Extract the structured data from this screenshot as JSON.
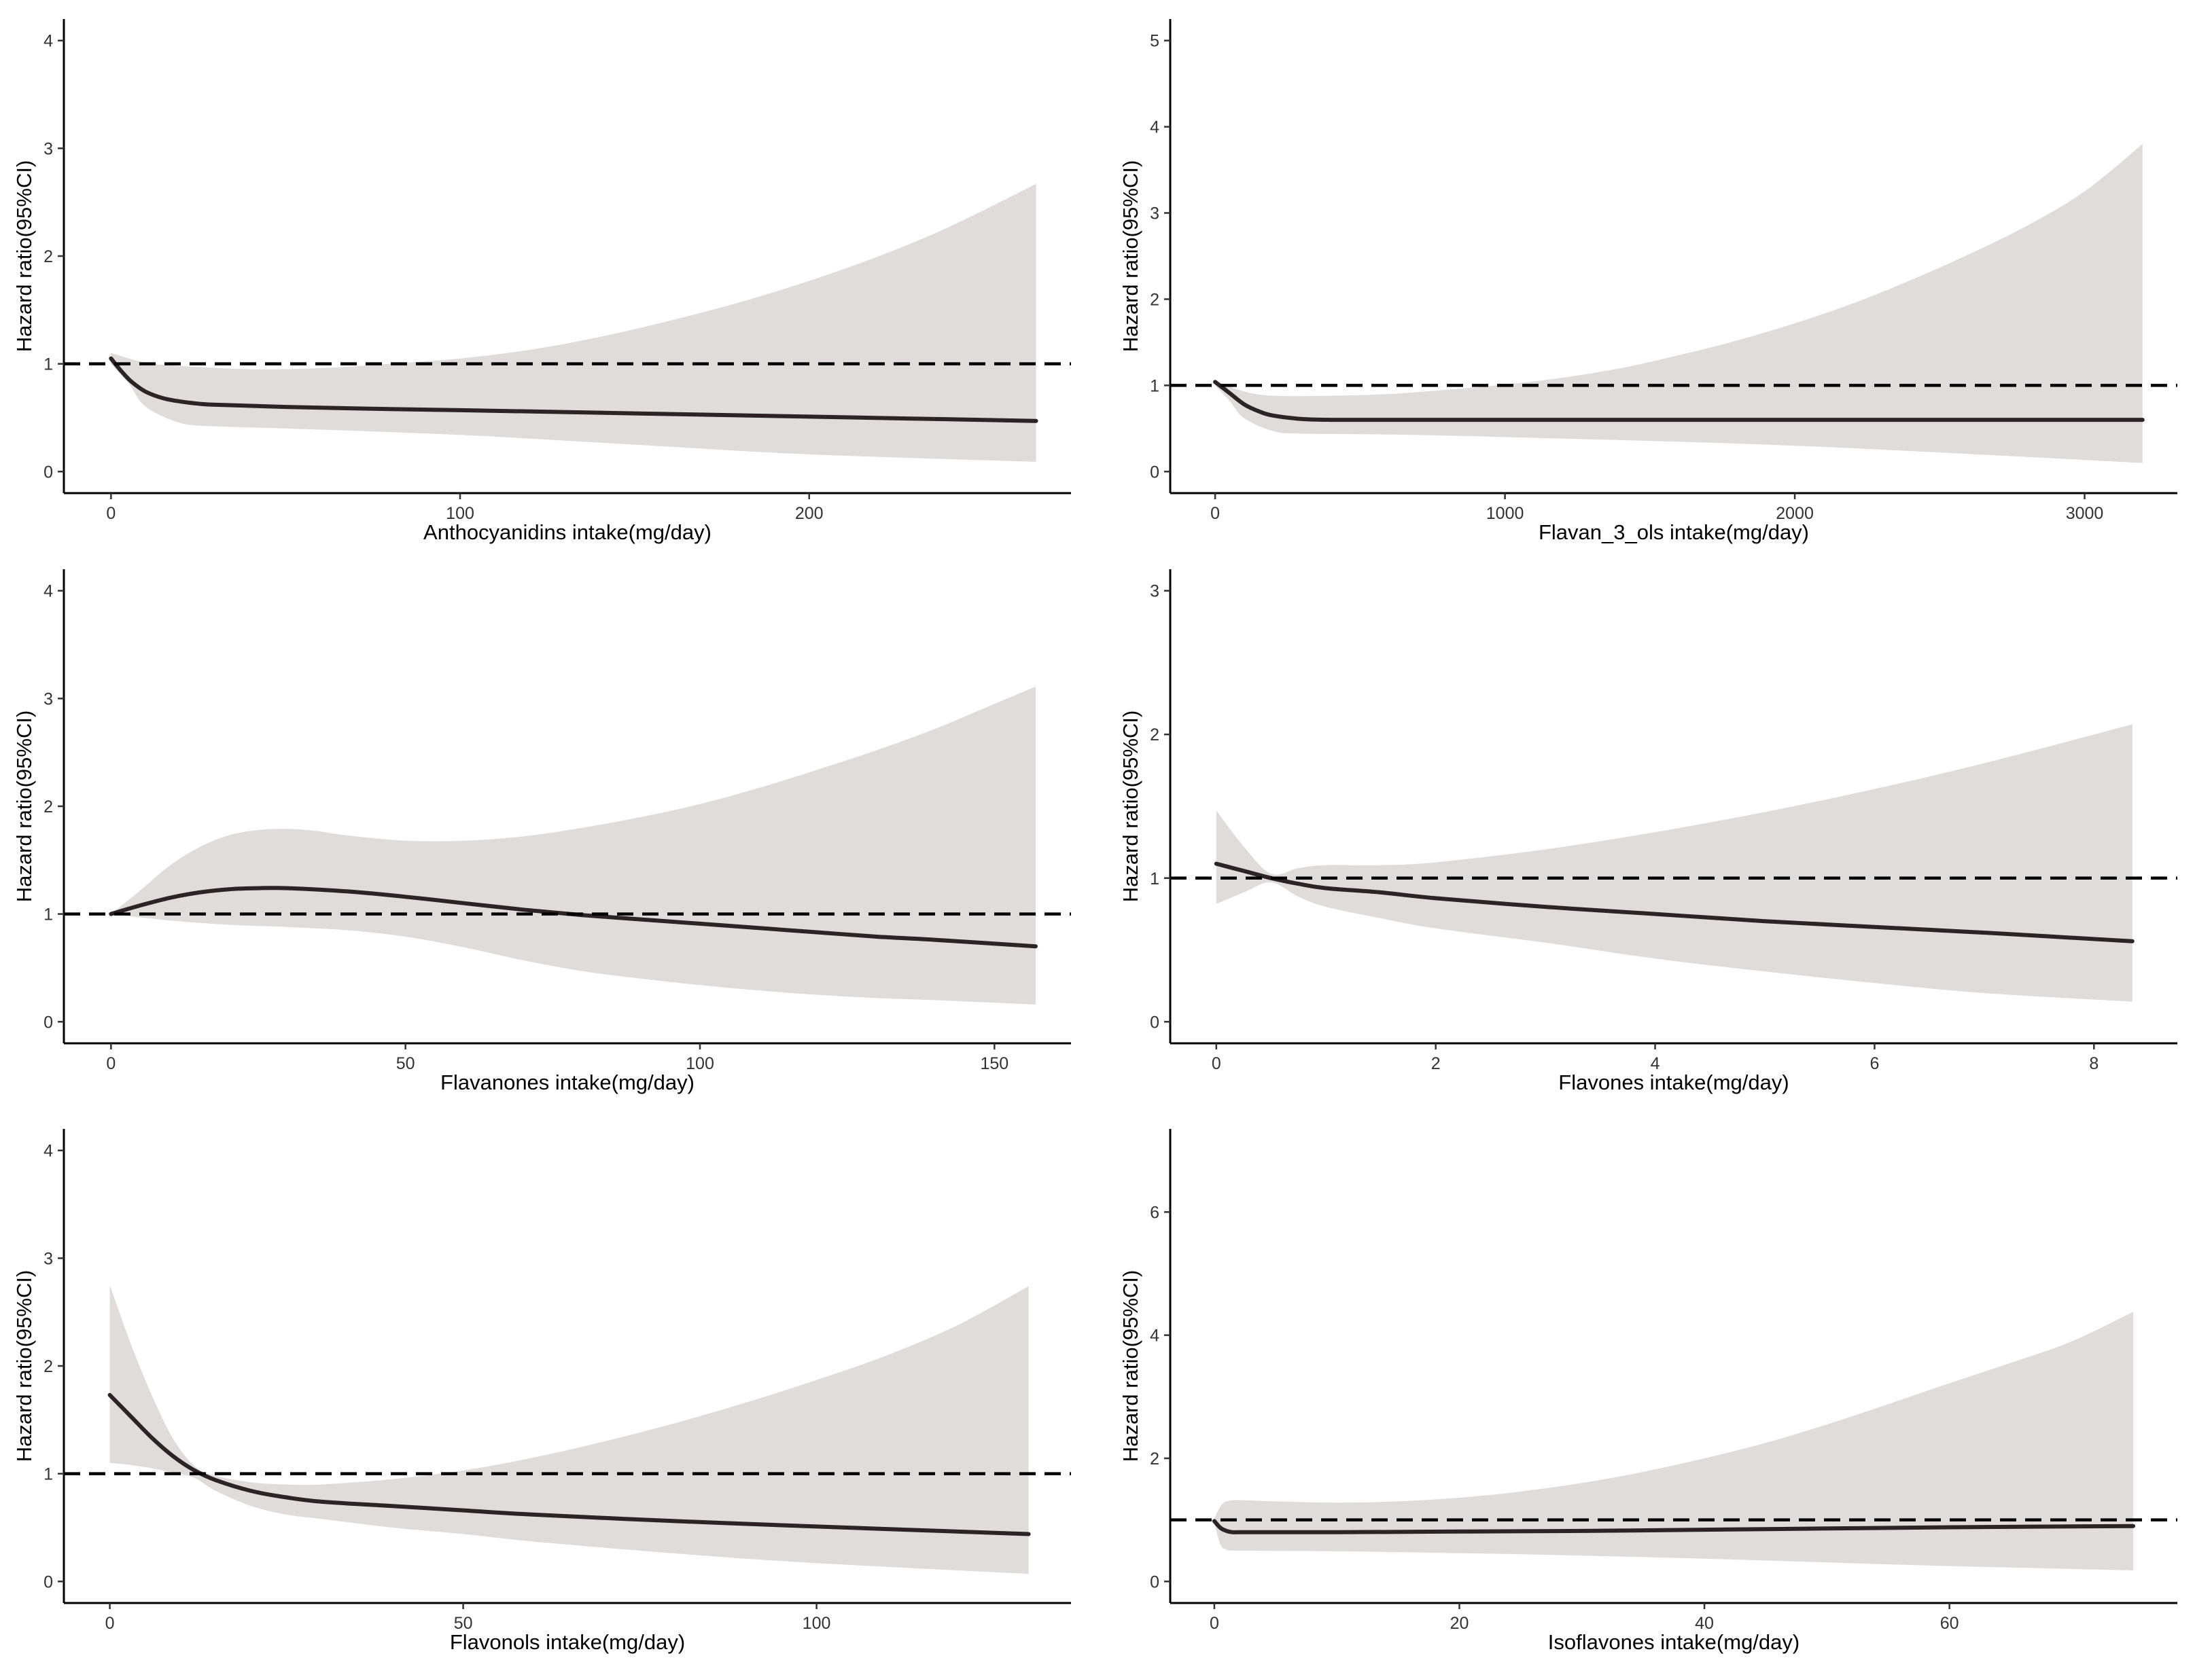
{
  "chart_data": [
    {
      "type": "line",
      "xlabel": "Anthocyanidins intake(mg/day)",
      "ylabel": "Hazard ratio(95%CI)",
      "xlim": [
        -13.5,
        275
      ],
      "ylim": [
        -0.2,
        4.2
      ],
      "xticks": [
        0,
        100,
        200
      ],
      "yticks": [
        0,
        1,
        2,
        3,
        4
      ],
      "reference_line": 1,
      "series": [
        {
          "name": "Hazard ratio",
          "x": [
            0,
            3,
            6,
            10,
            15,
            20,
            25,
            30,
            50,
            80,
            100,
            150,
            200,
            265
          ],
          "values": [
            1.05,
            0.93,
            0.83,
            0.74,
            0.68,
            0.65,
            0.63,
            0.62,
            0.6,
            0.58,
            0.57,
            0.54,
            0.51,
            0.47
          ]
        },
        {
          "name": "95% CI upper",
          "x": [
            0,
            10,
            20,
            40,
            60,
            80,
            100,
            120,
            140,
            160,
            180,
            200,
            220,
            240,
            265
          ],
          "values": [
            1.1,
            1.01,
            0.98,
            0.95,
            0.96,
            1.0,
            1.05,
            1.13,
            1.25,
            1.4,
            1.57,
            1.77,
            2.0,
            2.27,
            2.67
          ]
        },
        {
          "name": "95% CI lower",
          "x": [
            0,
            5,
            10,
            20,
            30,
            50,
            100,
            150,
            200,
            265
          ],
          "values": [
            1.0,
            0.82,
            0.6,
            0.45,
            0.42,
            0.4,
            0.34,
            0.25,
            0.16,
            0.09
          ]
        }
      ]
    },
    {
      "type": "line",
      "xlabel": "Flavan_3_ols intake(mg/day)",
      "ylabel": "Hazard ratio(95%CI)",
      "xlim": [
        -155,
        3320
      ],
      "ylim": [
        -0.25,
        5.25
      ],
      "xticks": [
        0,
        1000,
        2000,
        3000
      ],
      "yticks": [
        0,
        1,
        2,
        3,
        4,
        5
      ],
      "reference_line": 1,
      "series": [
        {
          "name": "Hazard ratio",
          "x": [
            0,
            50,
            100,
            150,
            200,
            300,
            400,
            600,
            1000,
            2000,
            3200
          ],
          "values": [
            1.04,
            0.91,
            0.78,
            0.7,
            0.65,
            0.61,
            0.6,
            0.6,
            0.6,
            0.6,
            0.6
          ]
        },
        {
          "name": "95% CI upper",
          "x": [
            0,
            100,
            200,
            400,
            600,
            800,
            1000,
            1200,
            1400,
            1600,
            1800,
            2000,
            2200,
            2400,
            2600,
            2800,
            3000,
            3200
          ],
          "values": [
            1.05,
            0.93,
            0.88,
            0.88,
            0.9,
            0.95,
            1.01,
            1.09,
            1.2,
            1.35,
            1.52,
            1.72,
            1.95,
            2.22,
            2.52,
            2.85,
            3.25,
            3.8
          ]
        },
        {
          "name": "95% CI lower",
          "x": [
            0,
            50,
            100,
            200,
            300,
            600,
            1000,
            2000,
            3200
          ],
          "values": [
            1.0,
            0.82,
            0.62,
            0.47,
            0.44,
            0.43,
            0.4,
            0.3,
            0.1
          ]
        }
      ]
    },
    {
      "type": "line",
      "xlabel": "Flavanones intake(mg/day)",
      "ylabel": "Hazard ratio(95%CI)",
      "xlim": [
        -8,
        163
      ],
      "ylim": [
        -0.2,
        4.2
      ],
      "xticks": [
        0,
        50,
        100,
        150
      ],
      "yticks": [
        0,
        1,
        2,
        3,
        4
      ],
      "reference_line": 1,
      "series": [
        {
          "name": "Hazard ratio",
          "x": [
            0,
            5,
            10,
            15,
            20,
            25,
            30,
            40,
            50,
            60,
            70,
            80,
            90,
            100,
            110,
            120,
            130,
            140,
            157
          ],
          "values": [
            1.0,
            1.08,
            1.15,
            1.2,
            1.23,
            1.24,
            1.24,
            1.21,
            1.16,
            1.1,
            1.04,
            0.99,
            0.95,
            0.91,
            0.87,
            0.83,
            0.79,
            0.76,
            0.7
          ]
        },
        {
          "name": "95% CI upper",
          "x": [
            0,
            5,
            10,
            15,
            20,
            25,
            30,
            35,
            40,
            50,
            60,
            70,
            80,
            90,
            100,
            110,
            120,
            130,
            140,
            150,
            157
          ],
          "values": [
            1.0,
            1.22,
            1.45,
            1.62,
            1.73,
            1.78,
            1.79,
            1.77,
            1.73,
            1.68,
            1.68,
            1.72,
            1.8,
            1.9,
            2.02,
            2.17,
            2.34,
            2.52,
            2.72,
            2.95,
            3.11
          ]
        },
        {
          "name": "95% CI lower",
          "x": [
            0,
            10,
            20,
            30,
            40,
            50,
            60,
            70,
            80,
            90,
            100,
            110,
            120,
            130,
            140,
            157
          ],
          "values": [
            1.0,
            0.94,
            0.9,
            0.88,
            0.85,
            0.79,
            0.69,
            0.57,
            0.47,
            0.4,
            0.34,
            0.29,
            0.25,
            0.22,
            0.2,
            0.16
          ]
        }
      ]
    },
    {
      "type": "line",
      "xlabel": "Flavones intake(mg/day)",
      "ylabel": "Hazard ratio(95%CI)",
      "xlim": [
        -0.42,
        8.76
      ],
      "ylim": [
        -0.15,
        3.15
      ],
      "xticks": [
        0,
        2,
        4,
        6,
        8
      ],
      "yticks": [
        0,
        1,
        2,
        3
      ],
      "reference_line": 1,
      "series": [
        {
          "name": "Hazard ratio",
          "x": [
            0,
            0.25,
            0.5,
            0.75,
            1,
            1.5,
            2,
            3,
            4,
            5,
            6,
            7,
            8.35
          ],
          "values": [
            1.1,
            1.05,
            1.0,
            0.96,
            0.93,
            0.9,
            0.86,
            0.8,
            0.75,
            0.7,
            0.66,
            0.62,
            0.56
          ]
        },
        {
          "name": "95% CI upper",
          "x": [
            0,
            0.25,
            0.5,
            0.75,
            1,
            1.5,
            2,
            3,
            4,
            5,
            6,
            7,
            8.35
          ],
          "values": [
            1.47,
            1.22,
            1.03,
            1.07,
            1.09,
            1.09,
            1.11,
            1.2,
            1.32,
            1.46,
            1.62,
            1.8,
            2.07
          ]
        },
        {
          "name": "95% CI lower",
          "x": [
            0,
            0.25,
            0.5,
            0.75,
            1,
            1.5,
            2,
            3,
            4,
            5,
            6,
            7,
            8.35
          ],
          "values": [
            0.82,
            0.9,
            0.97,
            0.87,
            0.8,
            0.72,
            0.65,
            0.55,
            0.44,
            0.35,
            0.27,
            0.2,
            0.14
          ]
        }
      ]
    },
    {
      "type": "line",
      "xlabel": "Flavonols intake(mg/day)",
      "ylabel": "Hazard ratio(95%CI)",
      "xlim": [
        -6.5,
        136
      ],
      "ylim": [
        -0.2,
        4.2
      ],
      "xticks": [
        0,
        50,
        100
      ],
      "yticks": [
        0,
        1,
        2,
        3,
        4
      ],
      "reference_line": 1,
      "series": [
        {
          "name": "Hazard ratio",
          "x": [
            0,
            3,
            6,
            9,
            12,
            15,
            20,
            25,
            30,
            40,
            50,
            60,
            80,
            100,
            130
          ],
          "values": [
            1.73,
            1.53,
            1.33,
            1.16,
            1.03,
            0.94,
            0.84,
            0.78,
            0.74,
            0.7,
            0.66,
            0.62,
            0.56,
            0.51,
            0.44
          ]
        },
        {
          "name": "95% CI upper",
          "x": [
            0,
            3,
            6,
            9,
            12,
            15,
            20,
            25,
            30,
            40,
            50,
            60,
            70,
            80,
            90,
            100,
            110,
            120,
            130
          ],
          "values": [
            2.75,
            2.2,
            1.72,
            1.32,
            1.07,
            0.98,
            0.92,
            0.9,
            0.9,
            0.95,
            1.03,
            1.15,
            1.3,
            1.47,
            1.66,
            1.87,
            2.1,
            2.38,
            2.74
          ]
        },
        {
          "name": "95% CI lower",
          "x": [
            0,
            3,
            6,
            9,
            12,
            15,
            20,
            25,
            30,
            40,
            50,
            60,
            80,
            100,
            130
          ],
          "values": [
            1.1,
            1.08,
            1.05,
            1.01,
            0.96,
            0.84,
            0.7,
            0.62,
            0.58,
            0.5,
            0.44,
            0.37,
            0.26,
            0.17,
            0.07
          ]
        }
      ]
    },
    {
      "type": "line",
      "xlabel": "Isoflavones intake(mg/day)",
      "ylabel": "Hazard ratio(95%CI)",
      "xlim": [
        -3.6,
        78.6
      ],
      "ylim": [
        -0.35,
        7.35
      ],
      "xticks": [
        0,
        20,
        40,
        60
      ],
      "yticks": [
        0,
        2,
        4,
        6
      ],
      "reference_line": 1,
      "series": [
        {
          "name": "Hazard ratio",
          "x": [
            0,
            0.5,
            1,
            1.5,
            2,
            5,
            10,
            20,
            30,
            40,
            50,
            60,
            75
          ],
          "values": [
            0.98,
            0.87,
            0.82,
            0.8,
            0.8,
            0.8,
            0.8,
            0.81,
            0.82,
            0.84,
            0.86,
            0.88,
            0.9
          ]
        },
        {
          "name": "95% CI upper",
          "x": [
            0,
            0.5,
            1,
            2,
            5,
            10,
            15,
            20,
            25,
            30,
            35,
            40,
            45,
            50,
            55,
            60,
            65,
            70,
            75
          ],
          "values": [
            1.02,
            1.22,
            1.3,
            1.32,
            1.3,
            1.28,
            1.3,
            1.36,
            1.46,
            1.6,
            1.78,
            2.0,
            2.25,
            2.55,
            2.88,
            3.22,
            3.55,
            3.9,
            4.38
          ]
        },
        {
          "name": "95% CI lower",
          "x": [
            0,
            0.5,
            1,
            2,
            10,
            20,
            30,
            40,
            50,
            60,
            75
          ],
          "values": [
            0.95,
            0.6,
            0.52,
            0.5,
            0.49,
            0.46,
            0.42,
            0.37,
            0.31,
            0.25,
            0.18
          ]
        }
      ]
    }
  ]
}
